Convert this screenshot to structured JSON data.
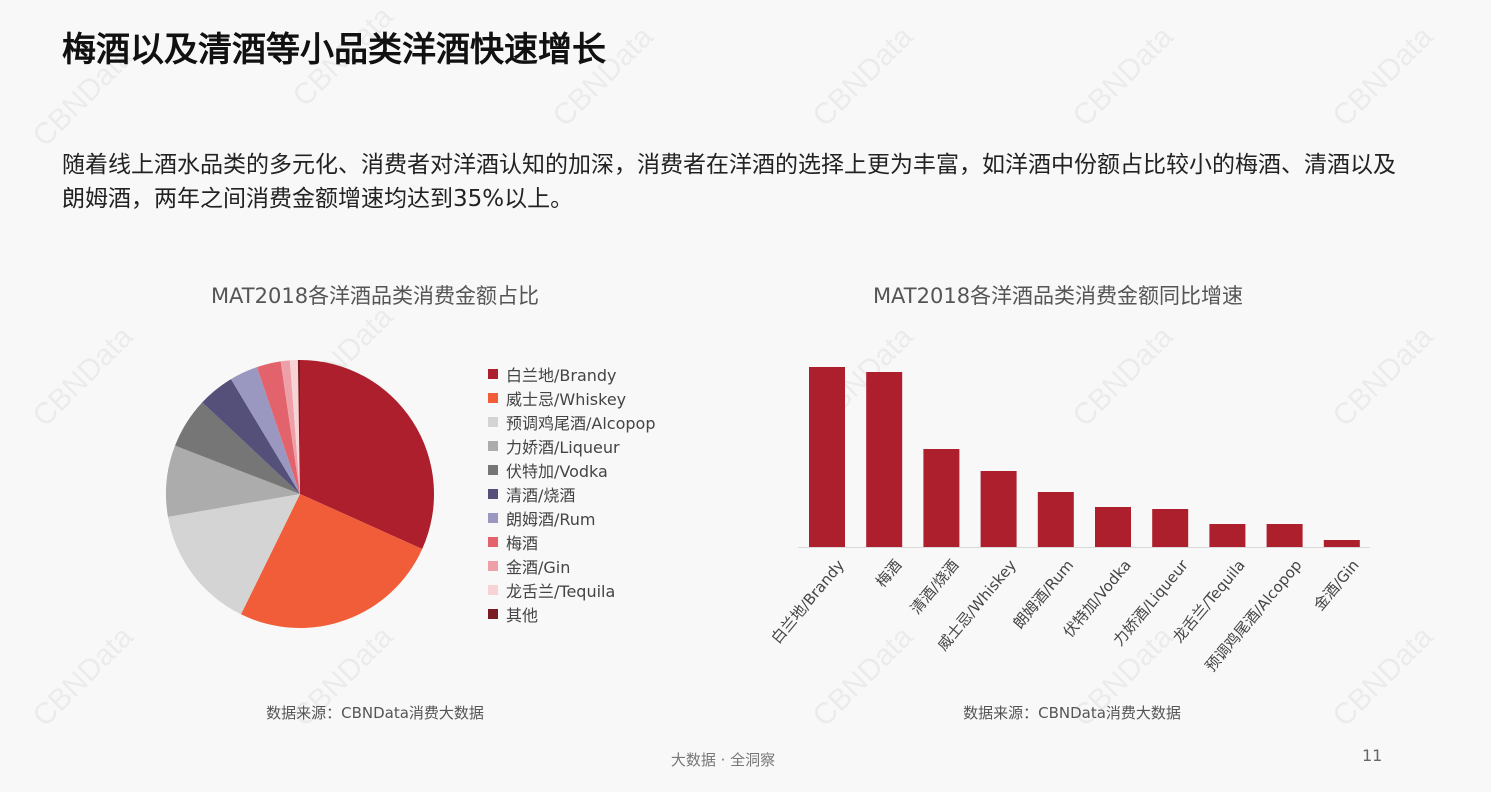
{
  "watermark": "CBNData",
  "title": "梅酒以及清酒等小品类洋酒快速增长",
  "intro": "随着线上酒水品类的多元化、消费者对洋酒认知的加深，消费者在洋酒的选择上更为丰富，如洋酒中份额占比较小的梅酒、清酒以及朗姆酒，两年之间消费金额增速均达到35%以上。",
  "footer": "大数据 · 全洞察",
  "page_number": "11",
  "chart_data": [
    {
      "type": "pie",
      "title": "MAT2018各洋酒品类消费金额占比",
      "source": "数据来源：CBNData消费大数据",
      "legend_position": "right",
      "categories": [
        "白兰地/Brandy",
        "威士忌/Whiskey",
        "预调鸡尾酒/Alcopop",
        "力娇酒/Liqueur",
        "伏特加/Vodka",
        "清酒/烧酒",
        "朗姆酒/Rum",
        "梅酒",
        "金酒/Gin",
        "龙舌兰/Tequila",
        "其他"
      ],
      "values": [
        31.7,
        25.5,
        15.0,
        8.6,
        6.1,
        4.4,
        3.4,
        2.9,
        1.1,
        0.95,
        0.25
      ],
      "colors": [
        "#ae1f2e",
        "#f15d38",
        "#d4d4d4",
        "#acacac",
        "#767676",
        "#54507a",
        "#9a98c0",
        "#e3636c",
        "#eea0a8",
        "#f7d3d6",
        "#7a1a22"
      ]
    },
    {
      "type": "bar",
      "title": "MAT2018各洋酒品类消费金额同比增速",
      "source": "数据来源：CBNData消费大数据",
      "categories": [
        "白兰地/Brandy",
        "梅酒",
        "清酒/烧酒",
        "威士忌/Whiskey",
        "朗姆酒/Rum",
        "伏特加/Vodka",
        "力娇酒/Liqueur",
        "龙舌兰/Tequila",
        "预调鸡尾酒/Alcopop",
        "金酒/Gin"
      ],
      "values": [
        180,
        175,
        98,
        76,
        55,
        40,
        38,
        23,
        23,
        7
      ],
      "color": "#ae1f2e",
      "grid": false
    }
  ]
}
